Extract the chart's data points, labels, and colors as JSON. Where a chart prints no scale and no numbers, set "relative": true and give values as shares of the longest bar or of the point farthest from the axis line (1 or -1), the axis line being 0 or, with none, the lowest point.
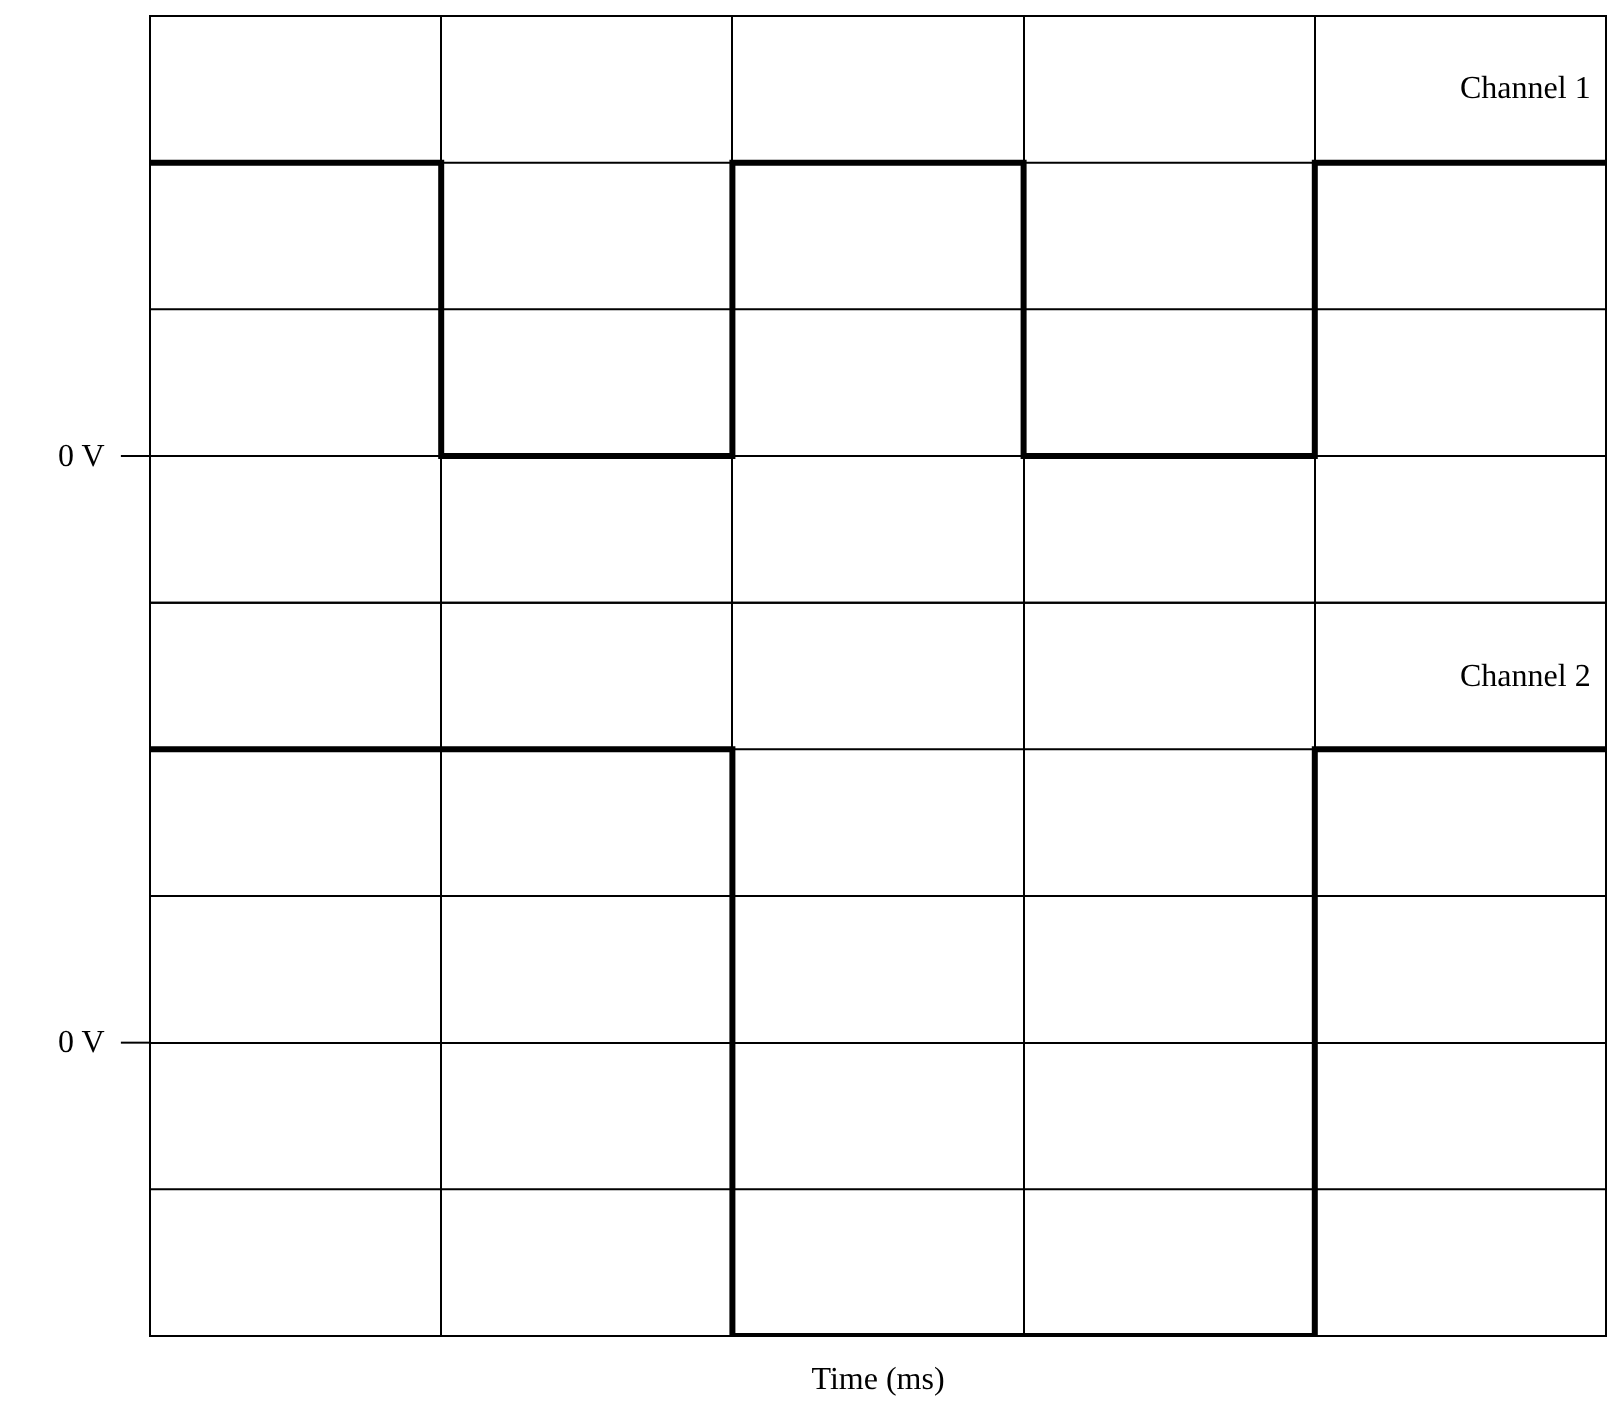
{
  "chart_data": [
    {
      "type": "step",
      "relative": true,
      "categories": [
        null,
        null,
        null,
        null,
        null,
        null
      ],
      "series": [
        {
          "name": "Channel 1",
          "color": "#000000",
          "values": [
            1,
            0,
            1,
            0,
            1,
            1
          ]
        }
      ],
      "ref_lines": [
        {
          "axis": "y",
          "value": 0,
          "label": "0 V"
        }
      ],
      "grid": true,
      "legend": false
    },
    {
      "type": "step",
      "relative": true,
      "categories": [
        null,
        null,
        null,
        null,
        null,
        null
      ],
      "series": [
        {
          "name": "Channel 2",
          "color": "#000000",
          "values": [
            1,
            1,
            -1,
            -1,
            1,
            1
          ]
        }
      ],
      "ref_lines": [
        {
          "axis": "y",
          "value": 0,
          "label": "0 V"
        }
      ],
      "xlabel": "Time (ms)",
      "grid": true,
      "legend": false
    }
  ]
}
